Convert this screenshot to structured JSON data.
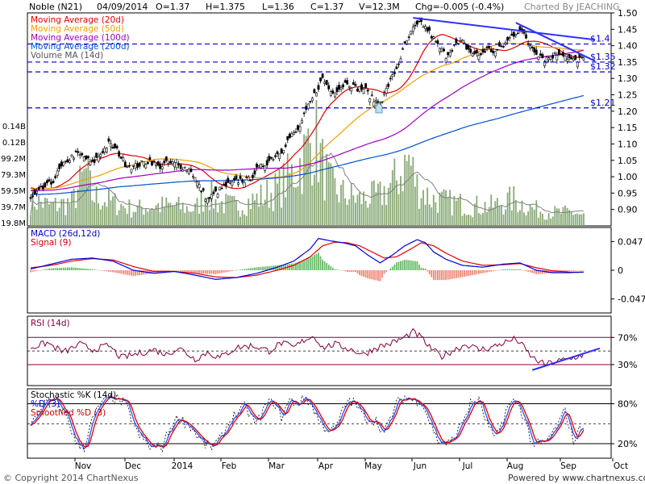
{
  "header": {
    "symbol": "Noble (N21)",
    "date": "04/09/2014",
    "open": "O=1.37",
    "high": "H=1.375",
    "low": "L=1.36",
    "close": "C=1.37",
    "volume": "V=12.3M",
    "change": "Chg=-0.005 (-0.4%)",
    "charted_by": "Charted By JEACHING"
  },
  "footer": {
    "copyright": "© Copyright 2014 ChartNexus",
    "powered": "Powered by www.chartnexus.com"
  },
  "x_axis_labels": [
    "Nov",
    "Dec",
    "2014",
    "Feb",
    "Mar",
    "Apr",
    "May",
    "Jun",
    "Jul",
    "Aug",
    "Sep",
    "Oct"
  ],
  "colors": {
    "ma20": "#e00000",
    "ma50": "#f0a000",
    "ma100": "#a000c0",
    "ma200": "#0050d0",
    "volume": "#88aa77",
    "volma": "#808080",
    "macd": "#0000e0",
    "signal": "#e00000",
    "rsi": "#800040",
    "trend": "#3030ff",
    "stoch_k": "#000000",
    "stoch_d": "#3050ff",
    "stoch_sd": "#e00000"
  },
  "chart_data": [
    {
      "type": "candlestick",
      "panel": "price",
      "legend": [
        "Moving Average (20d)",
        "Moving Average (50d)",
        "Moving Average (100d)",
        "Moving Average (200d)",
        "Volume MA (14d)"
      ],
      "ylim": [
        0.85,
        1.5
      ],
      "y_ticks": [
        "1.50",
        "1.45",
        "1.40",
        "1.35",
        "1.30",
        "1.25",
        "1.20",
        "1.15",
        "1.10",
        "1.05",
        "1.00",
        "0.95",
        "0.90"
      ],
      "volume_ticks": [
        "0.14B",
        "0.12B",
        "99.2M",
        "79.3M",
        "59.5M",
        "39.7M",
        "19.8M"
      ],
      "horizontal_lines": [
        {
          "label": "$1.4",
          "value": 1.405
        },
        {
          "label": "$1.35",
          "value": 1.35
        },
        {
          "label": "$1.32",
          "value": 1.32
        },
        {
          "label": "$1.21",
          "value": 1.21
        }
      ],
      "anchors": [
        [
          0,
          0.93
        ],
        [
          5,
          0.96
        ],
        [
          10,
          0.98
        ],
        [
          14,
          1.02
        ],
        [
          18,
          1.05
        ],
        [
          22,
          1.07
        ],
        [
          26,
          1.06
        ],
        [
          30,
          1.04
        ],
        [
          34,
          1.07
        ],
        [
          38,
          1.1
        ],
        [
          42,
          1.08
        ],
        [
          46,
          1.04
        ],
        [
          50,
          1.03
        ],
        [
          54,
          1.04
        ],
        [
          58,
          1.05
        ],
        [
          62,
          1.03
        ],
        [
          66,
          1.04
        ],
        [
          70,
          1.04
        ],
        [
          74,
          1.03
        ],
        [
          78,
          1.02
        ],
        [
          82,
          0.97
        ],
        [
          86,
          0.93
        ],
        [
          90,
          0.95
        ],
        [
          94,
          0.97
        ],
        [
          98,
          0.98
        ],
        [
          102,
          0.99
        ],
        [
          106,
          0.99
        ],
        [
          110,
          1.02
        ],
        [
          114,
          1.04
        ],
        [
          118,
          1.06
        ],
        [
          122,
          1.08
        ],
        [
          126,
          1.12
        ],
        [
          130,
          1.14
        ],
        [
          134,
          1.2
        ],
        [
          138,
          1.25
        ],
        [
          142,
          1.3
        ],
        [
          146,
          1.26
        ],
        [
          150,
          1.27
        ],
        [
          154,
          1.29
        ],
        [
          158,
          1.27
        ],
        [
          162,
          1.27
        ],
        [
          166,
          1.24
        ],
        [
          170,
          1.22
        ],
        [
          174,
          1.28
        ],
        [
          178,
          1.33
        ],
        [
          182,
          1.4
        ],
        [
          186,
          1.45
        ],
        [
          190,
          1.47
        ],
        [
          194,
          1.44
        ],
        [
          198,
          1.4
        ],
        [
          202,
          1.37
        ],
        [
          206,
          1.4
        ],
        [
          210,
          1.41
        ],
        [
          214,
          1.38
        ],
        [
          218,
          1.37
        ],
        [
          222,
          1.39
        ],
        [
          226,
          1.38
        ],
        [
          230,
          1.4
        ],
        [
          234,
          1.43
        ],
        [
          238,
          1.45
        ],
        [
          242,
          1.41
        ],
        [
          246,
          1.38
        ],
        [
          250,
          1.36
        ],
        [
          254,
          1.37
        ],
        [
          258,
          1.38
        ],
        [
          262,
          1.36
        ],
        [
          266,
          1.35
        ],
        [
          269,
          1.37
        ]
      ],
      "volume_anchors": [
        [
          0,
          40
        ],
        [
          10,
          30
        ],
        [
          20,
          35
        ],
        [
          27,
          80
        ],
        [
          30,
          45
        ],
        [
          40,
          35
        ],
        [
          50,
          25
        ],
        [
          60,
          30
        ],
        [
          70,
          30
        ],
        [
          80,
          25
        ],
        [
          86,
          50
        ],
        [
          90,
          35
        ],
        [
          100,
          30
        ],
        [
          110,
          40
        ],
        [
          120,
          55
        ],
        [
          128,
          80
        ],
        [
          134,
          110
        ],
        [
          138,
          140
        ],
        [
          142,
          90
        ],
        [
          146,
          60
        ],
        [
          150,
          50
        ],
        [
          160,
          40
        ],
        [
          170,
          45
        ],
        [
          178,
          70
        ],
        [
          184,
          100
        ],
        [
          188,
          60
        ],
        [
          195,
          40
        ],
        [
          205,
          35
        ],
        [
          215,
          30
        ],
        [
          225,
          30
        ],
        [
          235,
          40
        ],
        [
          245,
          25
        ],
        [
          255,
          20
        ],
        [
          265,
          20
        ],
        [
          269,
          15
        ]
      ],
      "trendlines": [
        {
          "from": [
            186,
            1.485
          ],
          "to": [
            269,
            1.43
          ]
        },
        {
          "from": [
            236,
            1.47
          ],
          "to": [
            269,
            1.365
          ]
        }
      ]
    },
    {
      "type": "line",
      "panel": "macd",
      "legend": [
        "MACD (26d,12d)",
        "Signal (9)"
      ],
      "y_ticks": [
        "0.047",
        "0",
        "-0.047"
      ],
      "ylim": [
        -0.07,
        0.07
      ],
      "macd_anchors": [
        [
          0,
          0.002
        ],
        [
          10,
          0.01
        ],
        [
          20,
          0.018
        ],
        [
          30,
          0.02
        ],
        [
          40,
          0.015
        ],
        [
          50,
          0.0
        ],
        [
          60,
          -0.005
        ],
        [
          70,
          -0.002
        ],
        [
          80,
          -0.008
        ],
        [
          90,
          -0.015
        ],
        [
          100,
          -0.012
        ],
        [
          110,
          -0.005
        ],
        [
          120,
          0.005
        ],
        [
          128,
          0.015
        ],
        [
          136,
          0.035
        ],
        [
          140,
          0.052
        ],
        [
          146,
          0.048
        ],
        [
          152,
          0.045
        ],
        [
          158,
          0.04
        ],
        [
          164,
          0.025
        ],
        [
          170,
          0.012
        ],
        [
          176,
          0.025
        ],
        [
          182,
          0.04
        ],
        [
          188,
          0.05
        ],
        [
          192,
          0.045
        ],
        [
          196,
          0.03
        ],
        [
          202,
          0.018
        ],
        [
          210,
          0.008
        ],
        [
          220,
          0.005
        ],
        [
          230,
          0.01
        ],
        [
          238,
          0.012
        ],
        [
          246,
          0.0
        ],
        [
          254,
          -0.004
        ],
        [
          262,
          -0.004
        ],
        [
          269,
          -0.003
        ]
      ],
      "signal_anchors": [
        [
          0,
          0.004
        ],
        [
          10,
          0.008
        ],
        [
          20,
          0.015
        ],
        [
          30,
          0.019
        ],
        [
          40,
          0.017
        ],
        [
          50,
          0.006
        ],
        [
          60,
          -0.002
        ],
        [
          70,
          -0.002
        ],
        [
          80,
          -0.005
        ],
        [
          90,
          -0.011
        ],
        [
          100,
          -0.012
        ],
        [
          110,
          -0.008
        ],
        [
          120,
          0.0
        ],
        [
          128,
          0.008
        ],
        [
          136,
          0.022
        ],
        [
          142,
          0.04
        ],
        [
          148,
          0.046
        ],
        [
          154,
          0.045
        ],
        [
          160,
          0.04
        ],
        [
          166,
          0.03
        ],
        [
          172,
          0.02
        ],
        [
          178,
          0.022
        ],
        [
          184,
          0.033
        ],
        [
          190,
          0.045
        ],
        [
          196,
          0.04
        ],
        [
          202,
          0.028
        ],
        [
          210,
          0.015
        ],
        [
          220,
          0.008
        ],
        [
          230,
          0.009
        ],
        [
          238,
          0.011
        ],
        [
          246,
          0.004
        ],
        [
          254,
          -0.001
        ],
        [
          262,
          -0.003
        ],
        [
          269,
          -0.003
        ]
      ]
    },
    {
      "type": "line",
      "panel": "rsi",
      "legend": [
        "RSI (14d)"
      ],
      "y_ticks": [
        "70%",
        "30%"
      ],
      "ylim": [
        0,
        100
      ],
      "rsi_anchors": [
        [
          0,
          55
        ],
        [
          8,
          62
        ],
        [
          16,
          48
        ],
        [
          24,
          60
        ],
        [
          30,
          52
        ],
        [
          38,
          58
        ],
        [
          44,
          40
        ],
        [
          52,
          46
        ],
        [
          60,
          52
        ],
        [
          66,
          45
        ],
        [
          72,
          55
        ],
        [
          80,
          38
        ],
        [
          86,
          48
        ],
        [
          92,
          40
        ],
        [
          100,
          55
        ],
        [
          108,
          58
        ],
        [
          116,
          50
        ],
        [
          122,
          62
        ],
        [
          128,
          55
        ],
        [
          134,
          68
        ],
        [
          138,
          72
        ],
        [
          142,
          55
        ],
        [
          148,
          60
        ],
        [
          156,
          52
        ],
        [
          162,
          45
        ],
        [
          168,
          55
        ],
        [
          176,
          62
        ],
        [
          182,
          70
        ],
        [
          186,
          78
        ],
        [
          190,
          70
        ],
        [
          194,
          55
        ],
        [
          200,
          42
        ],
        [
          206,
          52
        ],
        [
          212,
          60
        ],
        [
          218,
          52
        ],
        [
          224,
          55
        ],
        [
          230,
          62
        ],
        [
          236,
          68
        ],
        [
          240,
          55
        ],
        [
          244,
          40
        ],
        [
          250,
          30
        ],
        [
          256,
          35
        ],
        [
          262,
          38
        ],
        [
          269,
          45
        ]
      ],
      "trendline": {
        "from": [
          244,
          22
        ],
        "to": [
          269,
          42
        ]
      }
    },
    {
      "type": "line",
      "panel": "stochastic",
      "legend": [
        "Stochastic %K (14d)",
        "%D (3)",
        "Smoothed %D (3)"
      ],
      "y_ticks": [
        "80%",
        "20%"
      ],
      "ylim": [
        0,
        100
      ],
      "stoch_anchors": [
        [
          0,
          45
        ],
        [
          6,
          80
        ],
        [
          12,
          85
        ],
        [
          18,
          60
        ],
        [
          22,
          20
        ],
        [
          26,
          15
        ],
        [
          30,
          55
        ],
        [
          34,
          80
        ],
        [
          40,
          90
        ],
        [
          46,
          80
        ],
        [
          52,
          35
        ],
        [
          58,
          15
        ],
        [
          64,
          15
        ],
        [
          68,
          45
        ],
        [
          72,
          60
        ],
        [
          78,
          45
        ],
        [
          84,
          20
        ],
        [
          88,
          15
        ],
        [
          92,
          25
        ],
        [
          98,
          60
        ],
        [
          104,
          75
        ],
        [
          110,
          50
        ],
        [
          114,
          75
        ],
        [
          118,
          85
        ],
        [
          122,
          60
        ],
        [
          126,
          85
        ],
        [
          130,
          80
        ],
        [
          134,
          90
        ],
        [
          138,
          70
        ],
        [
          142,
          45
        ],
        [
          148,
          40
        ],
        [
          154,
          85
        ],
        [
          158,
          80
        ],
        [
          162,
          60
        ],
        [
          168,
          55
        ],
        [
          172,
          35
        ],
        [
          178,
          80
        ],
        [
          182,
          90
        ],
        [
          186,
          85
        ],
        [
          190,
          85
        ],
        [
          194,
          55
        ],
        [
          198,
          25
        ],
        [
          204,
          20
        ],
        [
          208,
          40
        ],
        [
          214,
          80
        ],
        [
          218,
          85
        ],
        [
          222,
          50
        ],
        [
          226,
          25
        ],
        [
          232,
          75
        ],
        [
          236,
          85
        ],
        [
          240,
          60
        ],
        [
          244,
          20
        ],
        [
          250,
          20
        ],
        [
          256,
          45
        ],
        [
          260,
          70
        ],
        [
          264,
          25
        ],
        [
          269,
          50
        ]
      ]
    }
  ]
}
